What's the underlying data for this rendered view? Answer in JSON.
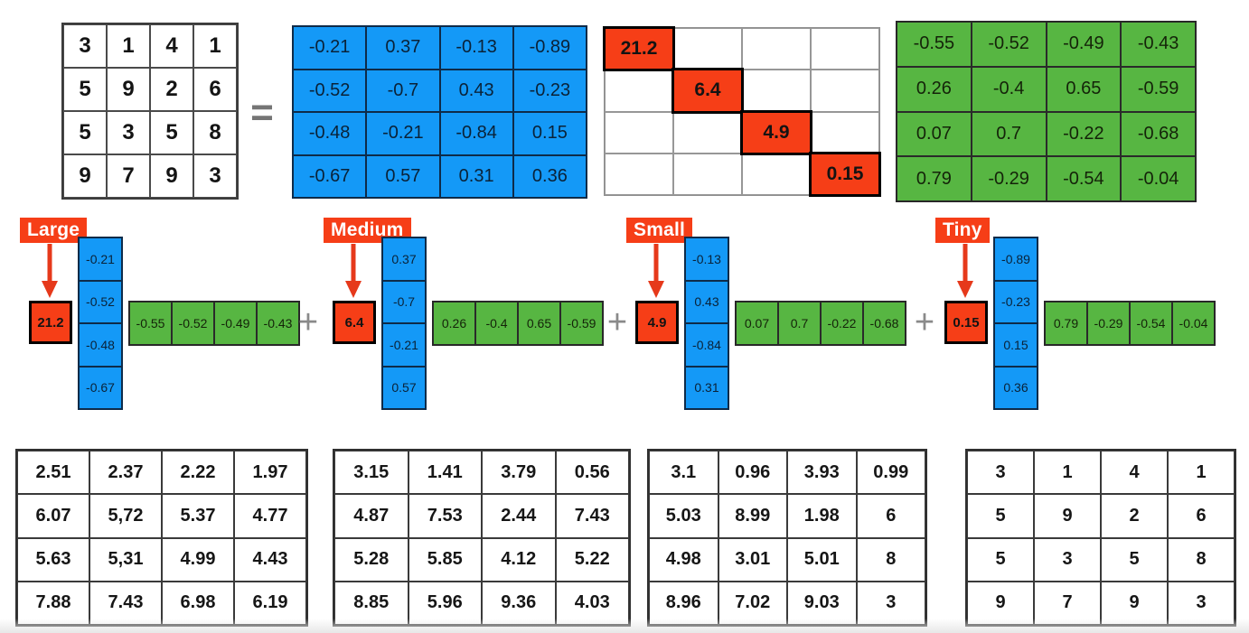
{
  "colors": {
    "u_matrix_blue": "#1499f7",
    "vt_matrix_green": "#57b642",
    "sigma_red": "#f63e17",
    "arrow_red": "#e6391b",
    "operator_gray": "#7a7a7a"
  },
  "top_row": {
    "original_matrix": {
      "rows": [
        [
          "3",
          "1",
          "4",
          "1"
        ],
        [
          "5",
          "9",
          "2",
          "6"
        ],
        [
          "5",
          "3",
          "5",
          "8"
        ],
        [
          "9",
          "7",
          "9",
          "3"
        ]
      ]
    },
    "equals_sign": "=",
    "u_matrix": {
      "rows": [
        [
          "-0.21",
          "0.37",
          "-0.13",
          "-0.89"
        ],
        [
          "-0.52",
          "-0.7",
          "0.43",
          "-0.23"
        ],
        [
          "-0.48",
          "-0.21",
          "-0.84",
          "0.15"
        ],
        [
          "-0.67",
          "0.57",
          "0.31",
          "0.36"
        ]
      ]
    },
    "sigma_matrix": {
      "diagonal": [
        "21.2",
        "6.4",
        "4.9",
        "0.15"
      ]
    },
    "vt_matrix": {
      "rows": [
        [
          "-0.55",
          "-0.52",
          "-0.49",
          "-0.43"
        ],
        [
          "0.26",
          "-0.4",
          "0.65",
          "-0.59"
        ],
        [
          "0.07",
          "0.7",
          "-0.22",
          "-0.68"
        ],
        [
          "0.79",
          "-0.29",
          "-0.54",
          "-0.04"
        ]
      ]
    }
  },
  "middle_row": {
    "plus_sign": "+",
    "terms": [
      {
        "label": "Large",
        "sigma": "21.2",
        "u_column": [
          "-0.21",
          "-0.52",
          "-0.48",
          "-0.67"
        ],
        "v_row": [
          "-0.55",
          "-0.52",
          "-0.49",
          "-0.43"
        ]
      },
      {
        "label": "Medium",
        "sigma": "6.4",
        "u_column": [
          "0.37",
          "-0.7",
          "-0.21",
          "0.57"
        ],
        "v_row": [
          "0.26",
          "-0.4",
          "0.65",
          "-0.59"
        ]
      },
      {
        "label": "Small",
        "sigma": "4.9",
        "u_column": [
          "-0.13",
          "0.43",
          "-0.84",
          "0.31"
        ],
        "v_row": [
          "0.07",
          "0.7",
          "-0.22",
          "-0.68"
        ]
      },
      {
        "label": "Tiny",
        "sigma": "0.15",
        "u_column": [
          "-0.89",
          "-0.23",
          "0.15",
          "0.36"
        ],
        "v_row": [
          "0.79",
          "-0.29",
          "-0.54",
          "-0.04"
        ]
      }
    ]
  },
  "bottom_row": {
    "matrices": [
      {
        "rows": [
          [
            "2.51",
            "2.37",
            "2.22",
            "1.97"
          ],
          [
            "6.07",
            "5,72",
            "5.37",
            "4.77"
          ],
          [
            "5.63",
            "5,31",
            "4.99",
            "4.43"
          ],
          [
            "7.88",
            "7.43",
            "6.98",
            "6.19"
          ]
        ]
      },
      {
        "rows": [
          [
            "3.15",
            "1.41",
            "3.79",
            "0.56"
          ],
          [
            "4.87",
            "7.53",
            "2.44",
            "7.43"
          ],
          [
            "5.28",
            "5.85",
            "4.12",
            "5.22"
          ],
          [
            "8.85",
            "5.96",
            "9.36",
            "4.03"
          ]
        ]
      },
      {
        "rows": [
          [
            "3.1",
            "0.96",
            "3.93",
            "0.99"
          ],
          [
            "5.03",
            "8.99",
            "1.98",
            "6"
          ],
          [
            "4.98",
            "3.01",
            "5.01",
            "8"
          ],
          [
            "8.96",
            "7.02",
            "9.03",
            "3"
          ]
        ]
      },
      {
        "rows": [
          [
            "3",
            "1",
            "4",
            "1"
          ],
          [
            "5",
            "9",
            "2",
            "6"
          ],
          [
            "5",
            "3",
            "5",
            "8"
          ],
          [
            "9",
            "7",
            "9",
            "3"
          ]
        ]
      }
    ]
  }
}
